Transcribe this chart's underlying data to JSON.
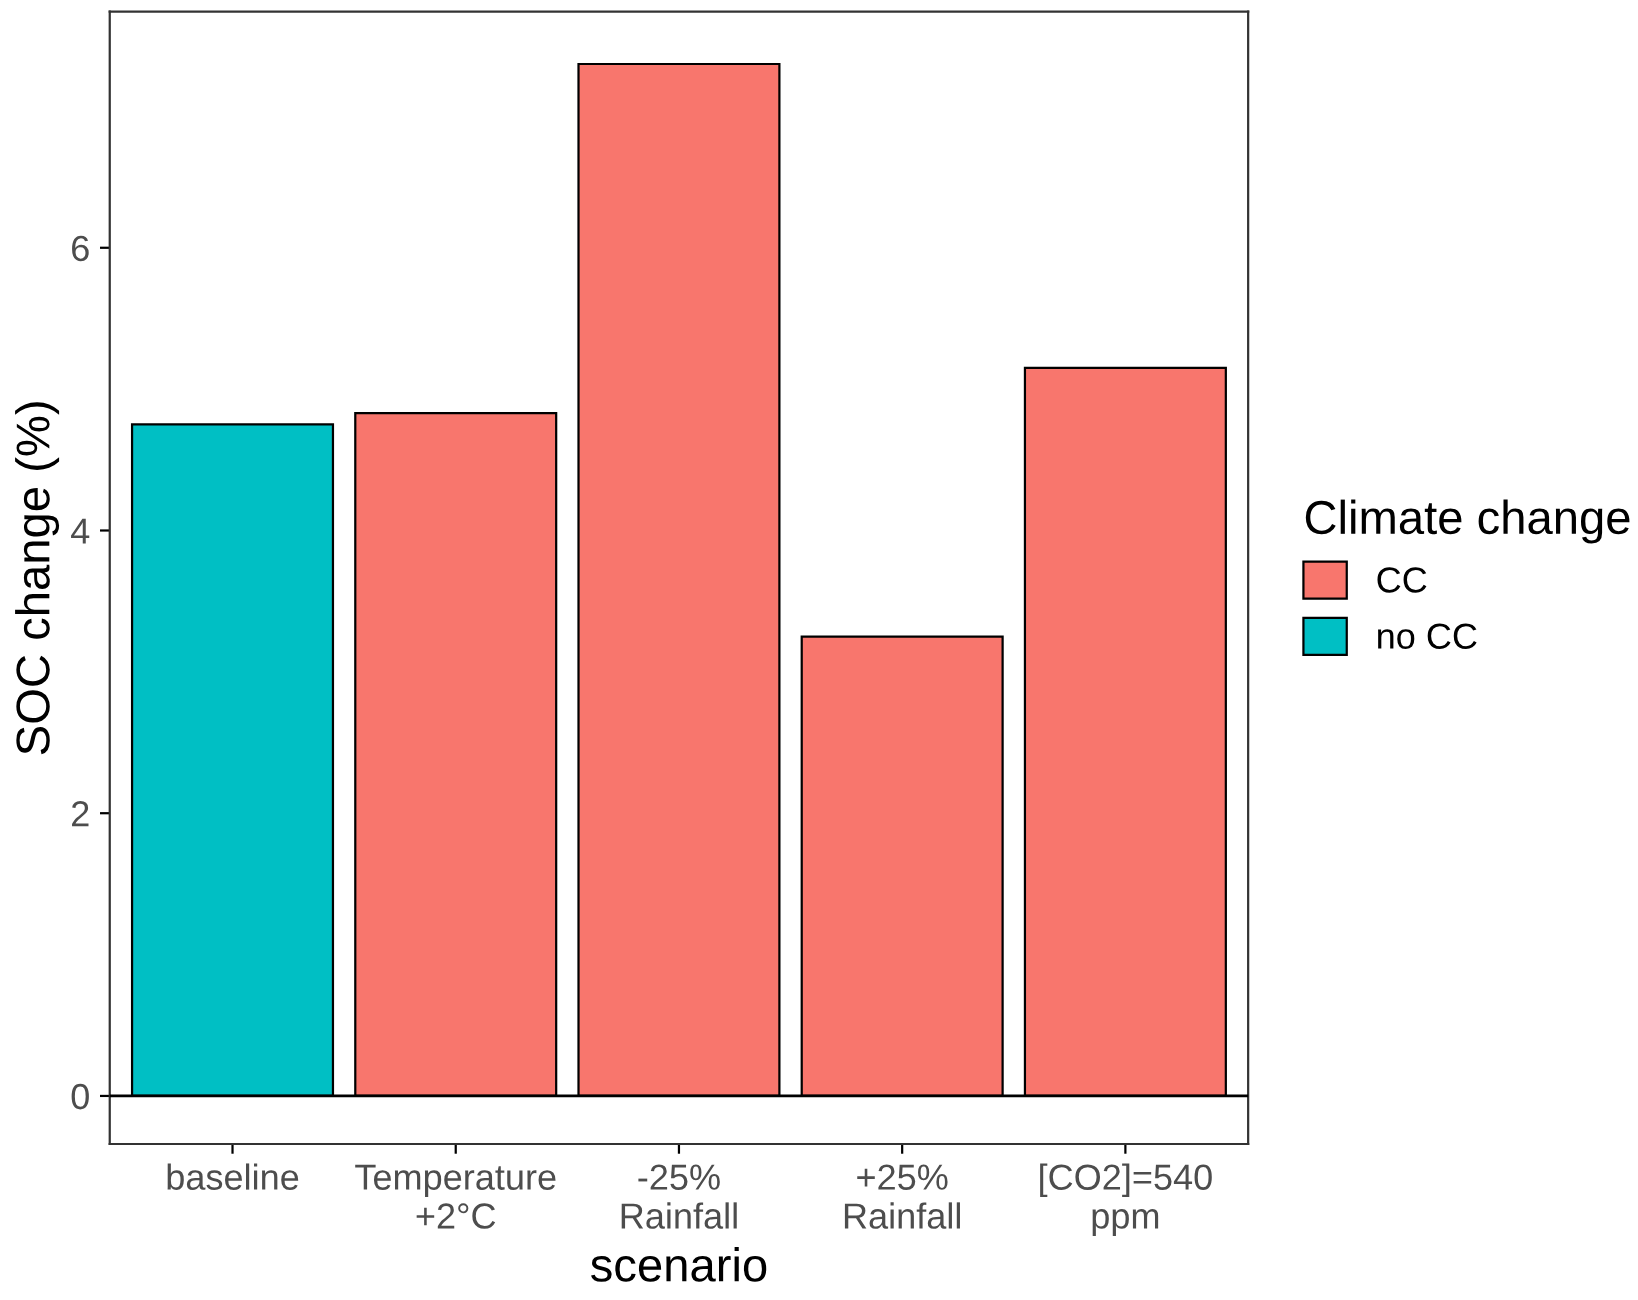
{
  "chart_data": {
    "type": "bar",
    "xlabel": "scenario",
    "ylabel": "SOC change (%)",
    "legend_title": "Climate change",
    "categories": [
      "baseline",
      "Temperature\n+2°C",
      "-25%\nRainfall",
      "+25%\nRainfall",
      "[CO2]=540\nppm"
    ],
    "series": [
      {
        "name": "CC",
        "color": "#f8766d",
        "values": [
          null,
          4.83,
          7.3,
          3.25,
          5.15
        ]
      },
      {
        "name": "no CC",
        "color": "#00bfc4",
        "values": [
          4.75,
          null,
          null,
          null,
          null
        ]
      }
    ],
    "ylim": [
      -0.34,
      7.67
    ],
    "yticks": [
      0,
      2,
      4,
      6
    ],
    "grid": false,
    "legend": "right",
    "ref_lines": [
      {
        "axis": "y",
        "value": 0,
        "color": "#000000"
      }
    ]
  }
}
